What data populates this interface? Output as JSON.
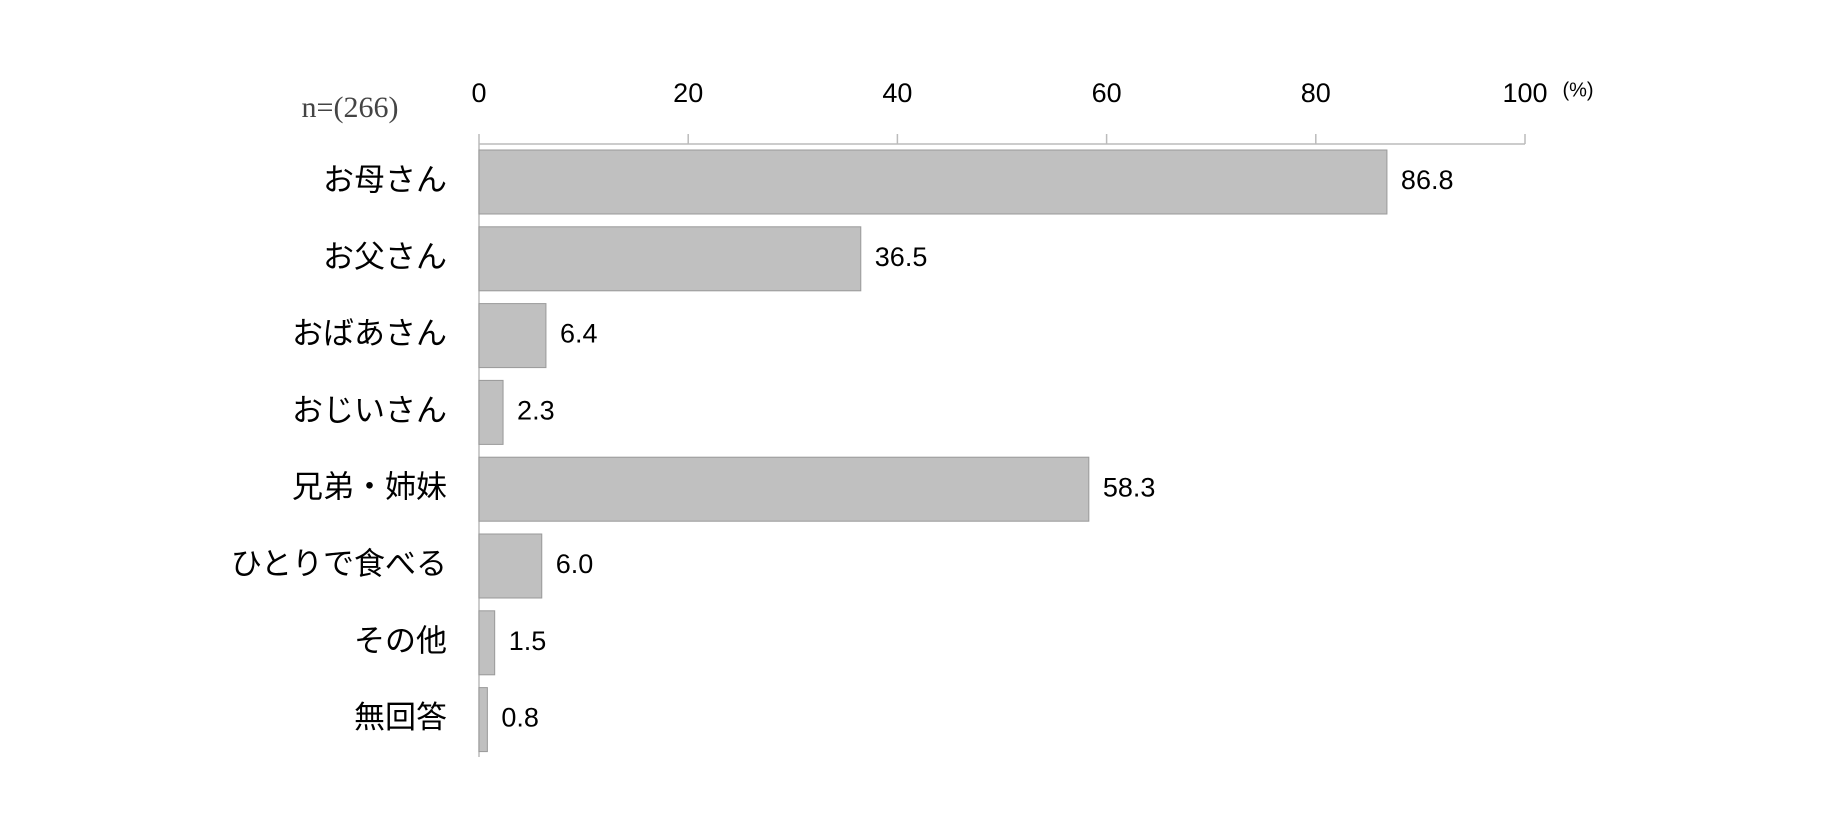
{
  "chart_data": {
    "type": "bar",
    "orientation": "horizontal",
    "note": "n=(266)",
    "unit": "(%)",
    "categories": [
      "お母さん",
      "お父さん",
      "おばあさん",
      "おじいさん",
      "兄弟・姉妹",
      "ひとりで食べる",
      "その他",
      "無回答"
    ],
    "values": [
      86.8,
      36.5,
      6.4,
      2.3,
      58.3,
      6.0,
      1.5,
      0.8
    ],
    "value_labels": [
      "86.8",
      "36.5",
      "6.4",
      "2.3",
      "58.3",
      "6.0",
      "1.5",
      "0.8"
    ],
    "color": "#c0c0c0",
    "xlim": [
      0,
      100
    ],
    "xticks": [
      0,
      20,
      40,
      60,
      80,
      100
    ]
  }
}
